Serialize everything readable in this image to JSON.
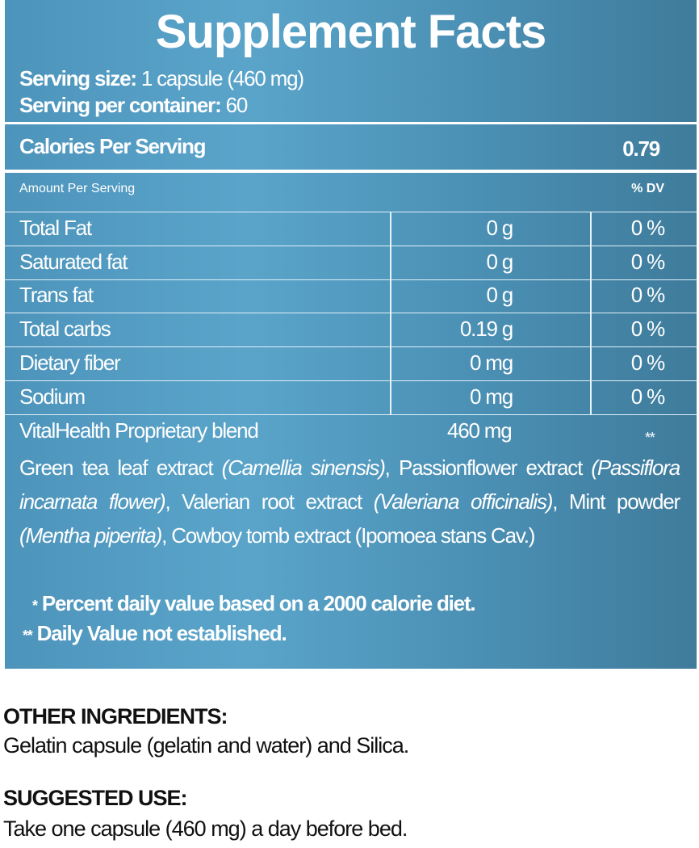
{
  "title": "Supplement Facts",
  "serving_size_label": "Serving size:",
  "serving_size_value": "1 capsule (460 mg)",
  "servings_label": "Serving per container:",
  "servings_value": "60",
  "calories_label": "Calories Per Serving",
  "calories_value": "0.79",
  "amount_header": "Amount Per Serving",
  "dv_header": "% DV",
  "rows": [
    {
      "name": "Total Fat",
      "amount": "0 g",
      "dv": "0 %"
    },
    {
      "name": "Saturated fat",
      "amount": "0 g",
      "dv": "0 %"
    },
    {
      "name": "Trans fat",
      "amount": "0 g",
      "dv": "0 %"
    },
    {
      "name": "Total carbs",
      "amount": "0.19 g",
      "dv": "0 %"
    },
    {
      "name": "Dietary fiber",
      "amount": "0 mg",
      "dv": "0 %"
    },
    {
      "name": "Sodium",
      "amount": "0 mg",
      "dv": "0 %"
    }
  ],
  "blend": {
    "name": "VitalHealth Proprietary blend",
    "amount": "460 mg",
    "dv": "**"
  },
  "blend_parts": [
    "Green tea leaf extract ",
    "(Camellia sinensis)",
    ", Passionflower extract ",
    "(Passiflora incarnata flower)",
    ", Valerian root extract ",
    "(Valeriana officinalis)",
    ", Mint powder ",
    "(Mentha piperita)",
    ", Cowboy tomb extract (Ipomoea stans Cav.)"
  ],
  "footnote1_mark": "*",
  "footnote1": "Percent daily value based on a 2000 calorie diet.",
  "footnote2_mark": "**",
  "footnote2": "Daily Value not established.",
  "other_ingredients_heading": "OTHER INGREDIENTS:",
  "other_ingredients_text": "Gelatin capsule (gelatin and water) and Silica.",
  "suggested_use_heading": "SUGGESTED USE:",
  "suggested_use_text": "Take one capsule (460 mg) a day before bed.",
  "colors": {
    "panel": "#4d94bb",
    "panel_dark": "#3f7b9b",
    "text": "#ffffff"
  }
}
